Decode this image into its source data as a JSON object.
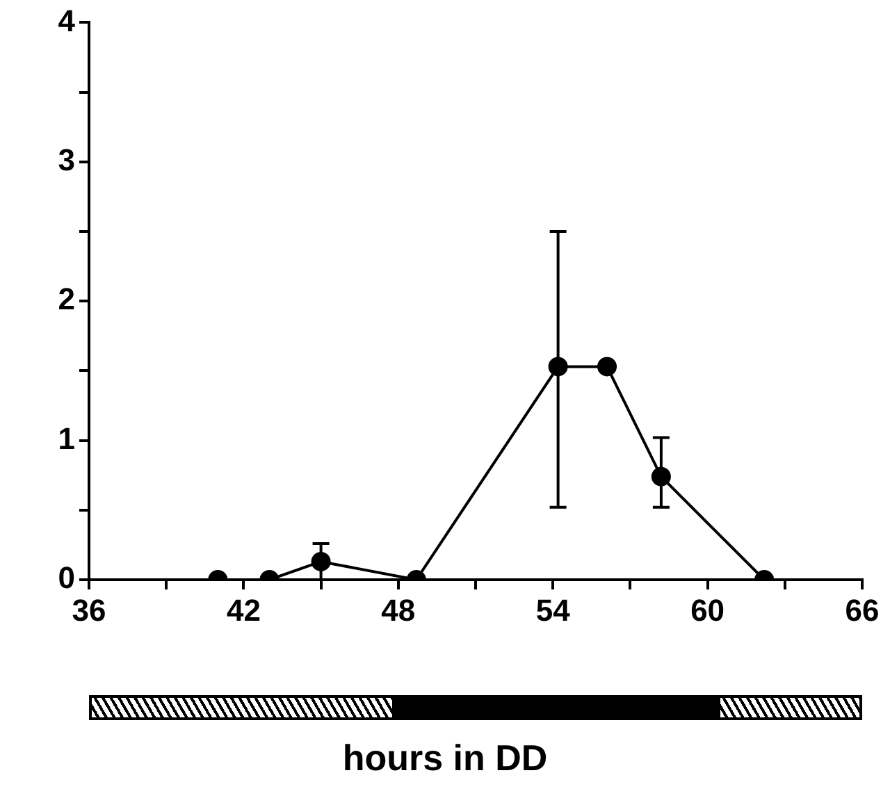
{
  "chart_data": {
    "type": "line",
    "xlabel": "hours in DD",
    "x": [
      41,
      43,
      45,
      48.7,
      54.2,
      56.1,
      58.2,
      62.2
    ],
    "series": [
      {
        "color": "#000000",
        "values": [
          0,
          0,
          0.13,
          0,
          1.53,
          1.53,
          0.74,
          0
        ],
        "errors": [
          null,
          null,
          0.13,
          null,
          [
            0.52,
            2.5
          ],
          null,
          [
            0.52,
            1.02
          ],
          null
        ]
      }
    ],
    "xlim": [
      36,
      66
    ],
    "xticks": [
      36,
      {
        "value": 39,
        "label": null
      },
      42,
      {
        "value": 45,
        "label": null
      },
      48,
      {
        "value": 51,
        "label": null
      },
      54,
      {
        "value": 57,
        "label": null
      },
      60,
      {
        "value": 63,
        "label": null
      },
      66
    ],
    "ylim": [
      0,
      4
    ],
    "yticks": [
      0,
      {
        "value": 0.5,
        "label": null
      },
      1,
      {
        "value": 1.5,
        "label": null
      },
      2,
      {
        "value": 2.5,
        "label": null
      },
      3,
      {
        "value": 3.5,
        "label": null
      },
      4
    ],
    "grid": false,
    "legend": false,
    "marker": "circle",
    "line_style": "solid"
  }
}
